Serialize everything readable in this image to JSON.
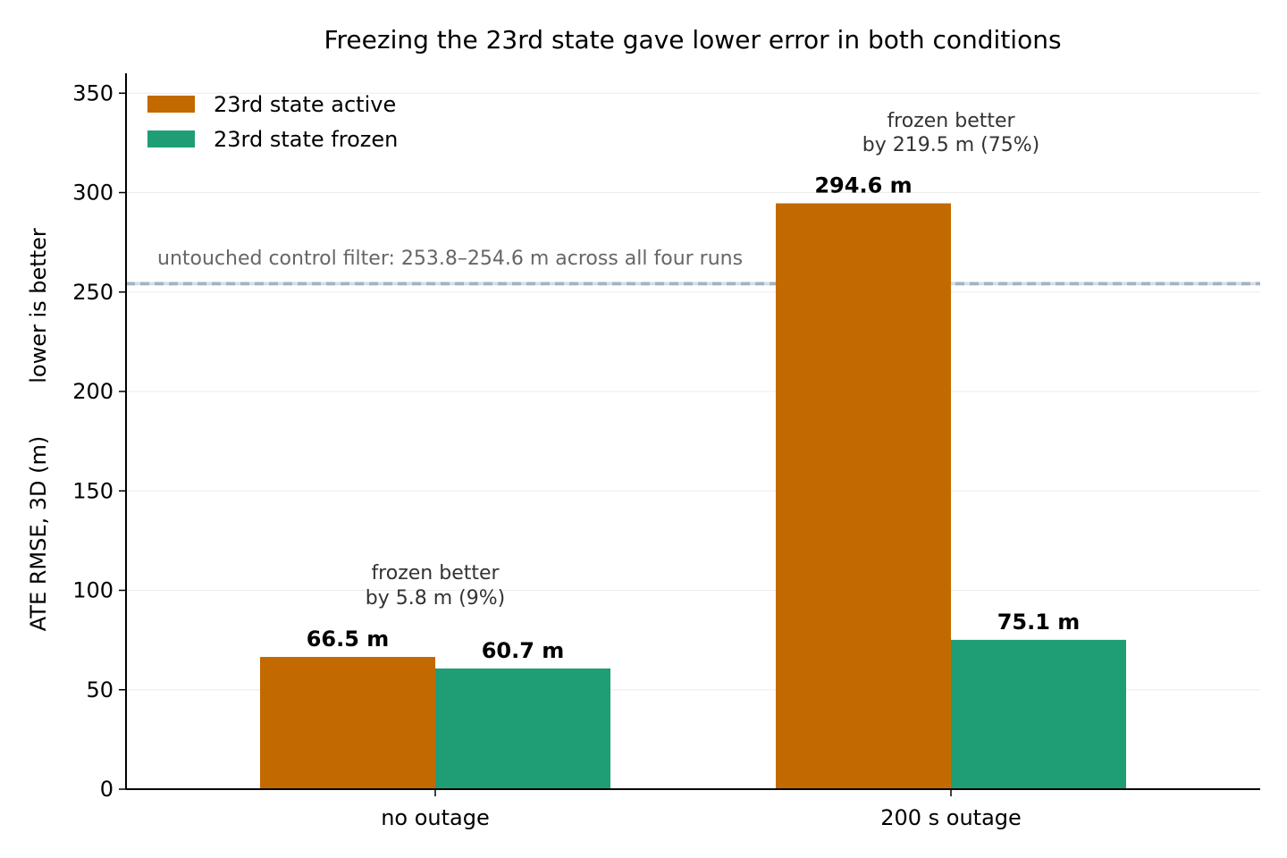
{
  "chart_data": {
    "type": "bar",
    "title": "Freezing the 23rd state gave lower error in both conditions",
    "xlabel": "",
    "ylabel": "ATE RMSE, 3D (m)",
    "ylabel_note": "lower is better",
    "ylim": [
      0,
      360
    ],
    "yticks": [
      0,
      50,
      100,
      150,
      200,
      250,
      300,
      350
    ],
    "grid": "horizontal",
    "legend_position": "top-left",
    "categories": [
      "no outage",
      "200 s outage"
    ],
    "series": [
      {
        "name": "23rd state active",
        "color": "#c26a00",
        "values": [
          66.5,
          294.6
        ],
        "labels": [
          "66.5 m",
          "294.6 m"
        ]
      },
      {
        "name": "23rd state frozen",
        "color": "#1f9e75",
        "values": [
          60.7,
          75.1
        ],
        "labels": [
          "60.7 m",
          "75.1 m"
        ]
      }
    ],
    "annotations": [
      {
        "category": "no outage",
        "lines": [
          "frozen better",
          "by 5.8 m (9%)"
        ]
      },
      {
        "category": "200 s outage",
        "lines": [
          "frozen better",
          "by 219.5 m (75%)"
        ]
      }
    ],
    "reference_band": {
      "low": 253.8,
      "high": 254.6,
      "color": "#9fb4c7",
      "label": "untouched control filter: 253.8–254.6 m across all four runs"
    }
  }
}
